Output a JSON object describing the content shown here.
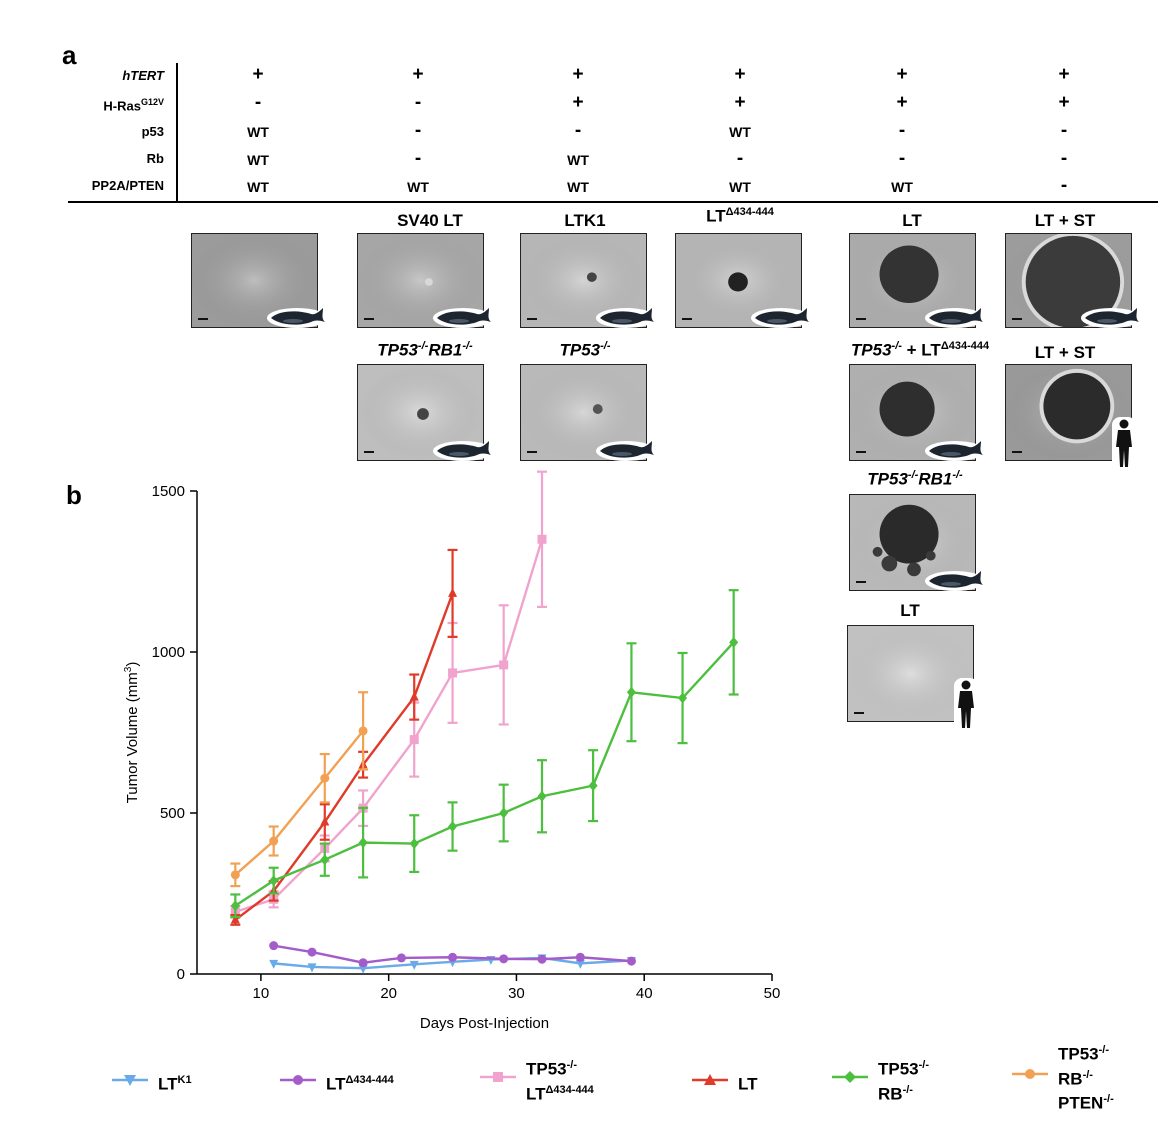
{
  "panel_a": {
    "label": "a",
    "table": {
      "rows": [
        {
          "label": "hTERT",
          "values": [
            "+",
            "+",
            "+",
            "+",
            "+",
            "+"
          ]
        },
        {
          "label": "H-Ras",
          "sup": "G12V",
          "values": [
            "-",
            "-",
            "+",
            "+",
            "+",
            "+"
          ]
        },
        {
          "label": "p53",
          "values": [
            "WT",
            "-",
            "-",
            "WT",
            "-",
            "-"
          ]
        },
        {
          "label": "Rb",
          "values": [
            "WT",
            "-",
            "WT",
            "-",
            "-",
            "-"
          ]
        },
        {
          "label": "PP2A/PTEN",
          "values": [
            "WT",
            "WT",
            "WT",
            "WT",
            "WT",
            "-"
          ]
        }
      ]
    },
    "image_titles": {
      "sv40lt": "SV40 LT",
      "ltk1": "LTK1",
      "lt_delta": {
        "main": "LT",
        "sup": "Δ434-444"
      },
      "lt": "LT",
      "lt_st": "LT + ST",
      "tp53_rb1": {
        "g1": "TP53",
        "s1": "-/-",
        "g2": "RB1",
        "s2": "-/-"
      },
      "tp53": {
        "g1": "TP53",
        "s1": "-/-"
      },
      "tp53_lt_delta": {
        "g1": "TP53",
        "s1": "-/-",
        "plus": " + LT",
        "s2": "Δ434-444"
      },
      "lt_st_human": "LT + ST",
      "tp53_rb1_b": {
        "g1": "TP53",
        "s1": "-/-",
        "g2": "RB1",
        "s2": "-/-"
      },
      "lt_human": "LT"
    }
  },
  "panel_b": {
    "label": "b"
  },
  "chart_data": {
    "type": "line",
    "xlabel": "Days Post-Injection",
    "ylabel": "Tumor Volume (mm",
    "ylabel_sup": "3",
    "ylabel_end": ")",
    "xlim": [
      5,
      50
    ],
    "ylim": [
      0,
      1500
    ],
    "xticks": [
      10,
      20,
      30,
      40,
      50
    ],
    "yticks": [
      0,
      500,
      1000,
      1500
    ],
    "legend_position": "bottom",
    "series": [
      {
        "name": "LT",
        "sup": "K1",
        "color": "#6aaae8",
        "marker": "triangle-down",
        "x": [
          11,
          14,
          18,
          22,
          25,
          28,
          32,
          35,
          39
        ],
        "y": [
          33,
          22,
          18,
          30,
          38,
          45,
          50,
          33,
          42
        ],
        "err": [
          0,
          0,
          0,
          0,
          0,
          0,
          0,
          0,
          0
        ]
      },
      {
        "name": "LT",
        "sup": "Δ434-444",
        "color": "#a45cc9",
        "marker": "circle",
        "x": [
          11,
          14,
          18,
          21,
          25,
          29,
          32,
          35,
          39
        ],
        "y": [
          88,
          68,
          35,
          50,
          52,
          47,
          46,
          52,
          40
        ],
        "err": [
          0,
          0,
          0,
          0,
          0,
          0,
          0,
          0,
          0
        ]
      },
      {
        "name": "TP53",
        "sup": "-/-",
        "name2": "LT",
        "sup2": "Δ434-444",
        "color": "#f0a3cc",
        "marker": "square",
        "x": [
          8,
          11,
          15,
          18,
          22,
          25,
          29,
          32
        ],
        "y": [
          193,
          232,
          390,
          515,
          728,
          935,
          960,
          1350
        ],
        "err": [
          18,
          25,
          40,
          55,
          115,
          155,
          185,
          210
        ]
      },
      {
        "name": "LT",
        "color": "#e03a2a",
        "marker": "triangle-up",
        "x": [
          8,
          11,
          15,
          18,
          22,
          25
        ],
        "y": [
          168,
          258,
          472,
          650,
          860,
          1182
        ],
        "err": [
          15,
          30,
          55,
          40,
          70,
          135
        ]
      },
      {
        "name": "TP53",
        "sup": "-/-",
        "name2": "RB",
        "sup2": "-/-",
        "color": "#4dbf3e",
        "marker": "diamond",
        "x": [
          8,
          11,
          15,
          18,
          22,
          25,
          29,
          32,
          36,
          39,
          43,
          47
        ],
        "y": [
          212,
          290,
          355,
          408,
          405,
          458,
          500,
          552,
          585,
          875,
          857,
          1030
        ],
        "err": [
          35,
          40,
          50,
          108,
          88,
          75,
          88,
          112,
          110,
          152,
          140,
          162
        ]
      },
      {
        "name": "TP53",
        "sup": "-/-",
        "name2": "RB",
        "sup2": "-/-",
        "name3": "PTEN",
        "sup3": "-/-",
        "color": "#f2a154",
        "marker": "circle",
        "x": [
          8,
          11,
          15,
          18
        ],
        "y": [
          308,
          413,
          608,
          755
        ],
        "err": [
          35,
          45,
          75,
          120
        ]
      }
    ]
  }
}
